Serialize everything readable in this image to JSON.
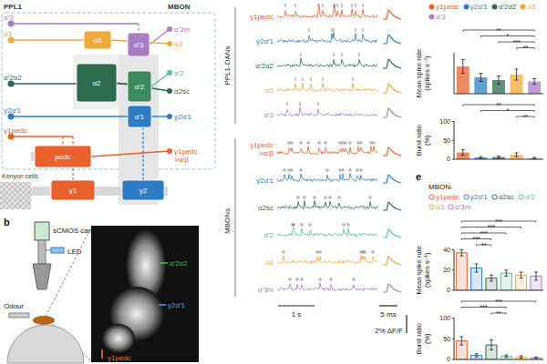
{
  "panel_a": {
    "dan_group": "PPL1",
    "mbon_group": "MBON",
    "kenyon_cells": "Kenyon cells",
    "dans": [
      {
        "label": "α′3",
        "color": "#a97cc6"
      },
      {
        "label": "α3",
        "color": "#f2a93b"
      },
      {
        "label": "α′2α2",
        "color": "#2d6a4f"
      },
      {
        "label": "γ2α′1",
        "color": "#2e7dc4"
      },
      {
        "label": "γ1pedc",
        "color": "#e8612c"
      }
    ],
    "compartments": [
      {
        "label": "α3",
        "color": "#f2a93b"
      },
      {
        "label": "α′3",
        "color": "#a97cc6"
      },
      {
        "label": "α2",
        "color": "#2d6a4f"
      },
      {
        "label": "α′2",
        "color": "#3d8a5e"
      },
      {
        "label": "α′1",
        "color": "#2e7dc4"
      },
      {
        "label": "pedc",
        "color": "#e8612c"
      },
      {
        "label": "γ1",
        "color": "#e8612c"
      },
      {
        "label": "γ2",
        "color": "#2e7dc4"
      }
    ],
    "mbons": [
      {
        "label": "α′3m",
        "color": "#a97cc6"
      },
      {
        "label": "α3",
        "color": "#f2a93b"
      },
      {
        "label": "α′2",
        "color": "#52c49a"
      },
      {
        "label": "α2sc",
        "color": "#2d6a4f"
      },
      {
        "label": "γ2α′1",
        "color": "#2e7dc4"
      },
      {
        "label": "γ1pedc >α/β",
        "color": "#e8612c"
      }
    ]
  },
  "panel_b": {
    "label": "b",
    "camera": "sCMOS camera",
    "light": "LED",
    "stimulus": "Odour",
    "regions": [
      {
        "label": "α′2α2",
        "color": "#3fbf6f"
      },
      {
        "label": "γ2α′1",
        "color": "#5aa0e6"
      },
      {
        "label": "γ1pedc",
        "color": "#f07040"
      }
    ]
  },
  "traces": {
    "groups": [
      {
        "label": "PPL1-DANs",
        "rows": [
          {
            "label": "γ1pedc",
            "color": "#e8612c"
          },
          {
            "label": "γ2α′1",
            "color": "#2e7dc4"
          },
          {
            "label": "α′2α2",
            "color": "#2d6a4f"
          },
          {
            "label": "α3",
            "color": "#f2a93b"
          },
          {
            "label": "α′3",
            "color": "#a97cc6"
          }
        ]
      },
      {
        "label": "MBONs",
        "rows": [
          {
            "label": "γ1pedc >α/β",
            "color": "#e8612c"
          },
          {
            "label": "γ2α′1",
            "color": "#2e7dc4"
          },
          {
            "label": "α2sc",
            "color": "#2d6a4f"
          },
          {
            "label": "α′2",
            "color": "#52c49a"
          },
          {
            "label": "α3",
            "color": "#f2a93b"
          },
          {
            "label": "α′3m",
            "color": "#a97cc6"
          }
        ]
      }
    ],
    "time_scale": "1 s",
    "spike_scale": "5 ms",
    "amplitude_scale": "2% ΔF/F"
  },
  "panel_e": {
    "label": "e"
  },
  "chart_data": [
    {
      "type": "bar",
      "ylabel": "Mean spike rate (spikes s⁻¹)",
      "categories": [
        "γ1pedc",
        "γ2α′1",
        "α′2α2",
        "α3",
        "α′3"
      ],
      "values": [
        20,
        12,
        10,
        14,
        9
      ],
      "errors": [
        5,
        3,
        3,
        4,
        2
      ],
      "colors": [
        "#e8612c",
        "#2e7dc4",
        "#2d6a4f",
        "#f2a93b",
        "#a97cc6"
      ],
      "ylim": [
        0,
        30
      ],
      "tick_labels": false,
      "legend": "top",
      "marker": "circle",
      "significance": [
        {
          "from": 0,
          "to": 4,
          "label": "**"
        },
        {
          "from": 1,
          "to": 4,
          "label": "*"
        },
        {
          "from": 2,
          "to": 4,
          "label": "***"
        },
        {
          "from": 3,
          "to": 4,
          "label": "**"
        }
      ]
    },
    {
      "type": "bar",
      "ylabel": "Burst ratio (%)",
      "categories": [
        "γ1pedc",
        "γ2α′1",
        "α′2α2",
        "α3",
        "α′3"
      ],
      "values": [
        18,
        5,
        6,
        12,
        3
      ],
      "errors": [
        7,
        2,
        3,
        5,
        2
      ],
      "colors": [
        "#e8612c",
        "#2e7dc4",
        "#2d6a4f",
        "#f2a93b",
        "#a97cc6"
      ],
      "ylim": [
        0,
        100
      ],
      "yticks": [
        0,
        50,
        100
      ],
      "tick_labels": "y",
      "marker": "circle",
      "significance": [
        {
          "from": 0,
          "to": 4,
          "label": "**"
        },
        {
          "from": 1,
          "to": 4,
          "label": "*"
        },
        {
          "from": 3,
          "to": 4,
          "label": "**"
        }
      ]
    },
    {
      "type": "bar",
      "title": "MBON-",
      "ylabel": "Mean spike rate (spikes s⁻¹)",
      "categories": [
        "γ1pedc",
        "γ2α′1",
        "α2sc",
        "α′2",
        "α3",
        "α′3m"
      ],
      "values": [
        37,
        22,
        12,
        17,
        15,
        14
      ],
      "errors": [
        3,
        4,
        3,
        3,
        3,
        4
      ],
      "colors": [
        "#e8612c",
        "#2e7dc4",
        "#2d6a4f",
        "#52c49a",
        "#f2a93b",
        "#a97cc6"
      ],
      "ylim": [
        0,
        40
      ],
      "yticks": [
        0,
        20,
        40
      ],
      "tick_labels": "y",
      "legend": "top",
      "marker": "open_circle",
      "significance": [
        {
          "from": 0,
          "to": 5,
          "label": "***"
        },
        {
          "from": 0,
          "to": 4,
          "label": "***"
        },
        {
          "from": 0,
          "to": 3,
          "label": "***"
        },
        {
          "from": 0,
          "to": 2,
          "label": "***"
        },
        {
          "from": 1,
          "to": 2,
          "label": "**"
        }
      ]
    },
    {
      "type": "bar",
      "ylabel": "Burst ratio (%)",
      "categories": [
        "γ1pedc",
        "γ2α′1",
        "α2sc",
        "α′2",
        "α3",
        "α′3m"
      ],
      "values": [
        45,
        10,
        35,
        8,
        6,
        4
      ],
      "errors": [
        10,
        4,
        12,
        3,
        3,
        2
      ],
      "colors": [
        "#e8612c",
        "#2e7dc4",
        "#2d6a4f",
        "#52c49a",
        "#f2a93b",
        "#a97cc6"
      ],
      "ylim": [
        0,
        100
      ],
      "yticks": [
        0,
        50,
        100
      ],
      "tick_labels": "y",
      "marker": "open_circle",
      "significance": [
        {
          "from": 0,
          "to": 5,
          "label": "***"
        },
        {
          "from": 0,
          "to": 3,
          "label": "***"
        },
        {
          "from": 2,
          "to": 3,
          "label": "**"
        }
      ]
    }
  ]
}
